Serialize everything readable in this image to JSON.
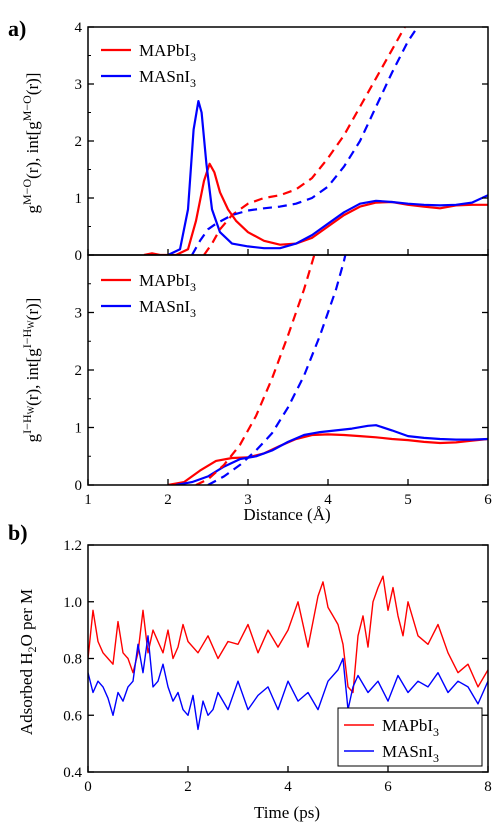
{
  "chart_data": [
    {
      "panel": "a)",
      "type": "line",
      "xlim": [
        1,
        6
      ],
      "ylim": [
        0,
        4
      ],
      "ylabel": "g^{M−O}(r), int[g^{M−O}(r)]",
      "ylabel_parts": {
        "g": "g",
        "sup": "M−O",
        "rest": "(r), int[g",
        "sup2": "M−O",
        "end": "(r)]"
      },
      "yticks": [
        0,
        1,
        2,
        3,
        4
      ],
      "legend": {
        "position": "top-left",
        "entries": [
          "MAPbI3",
          "MASnI3"
        ]
      },
      "series": [
        {
          "name": "MAPbI3",
          "color": "#ff0000",
          "style": "solid",
          "x": [
            1.7,
            1.8,
            1.9,
            2.1,
            2.25,
            2.35,
            2.45,
            2.52,
            2.58,
            2.65,
            2.75,
            2.85,
            3.0,
            3.2,
            3.4,
            3.6,
            3.8,
            4.0,
            4.2,
            4.4,
            4.6,
            4.8,
            5.0,
            5.2,
            5.4,
            5.6,
            5.8,
            6.0
          ],
          "y": [
            0.0,
            0.03,
            0.0,
            0.0,
            0.1,
            0.6,
            1.3,
            1.6,
            1.45,
            1.1,
            0.8,
            0.6,
            0.4,
            0.25,
            0.18,
            0.2,
            0.3,
            0.5,
            0.7,
            0.85,
            0.92,
            0.93,
            0.88,
            0.85,
            0.82,
            0.87,
            0.88,
            0.88
          ]
        },
        {
          "name": "MASnI3",
          "color": "#0000ff",
          "style": "solid",
          "x": [
            2.0,
            2.15,
            2.25,
            2.32,
            2.38,
            2.42,
            2.48,
            2.55,
            2.65,
            2.8,
            3.0,
            3.2,
            3.4,
            3.6,
            3.8,
            4.0,
            4.2,
            4.4,
            4.6,
            4.8,
            5.0,
            5.2,
            5.4,
            5.6,
            5.8,
            6.0
          ],
          "y": [
            0.0,
            0.1,
            0.8,
            2.2,
            2.7,
            2.5,
            1.6,
            0.8,
            0.4,
            0.2,
            0.15,
            0.12,
            0.12,
            0.2,
            0.35,
            0.55,
            0.75,
            0.9,
            0.95,
            0.93,
            0.9,
            0.88,
            0.87,
            0.88,
            0.92,
            1.05
          ]
        },
        {
          "name": "MAPbI3",
          "color": "#ff0000",
          "style": "dashed",
          "x": [
            2.45,
            2.55,
            2.65,
            2.8,
            3.0,
            3.2,
            3.4,
            3.6,
            3.8,
            4.0,
            4.2,
            4.4,
            4.6,
            4.8,
            4.96
          ],
          "y": [
            0.0,
            0.2,
            0.45,
            0.7,
            0.9,
            1.0,
            1.05,
            1.15,
            1.35,
            1.7,
            2.1,
            2.6,
            3.1,
            3.6,
            4.0
          ]
        },
        {
          "name": "MASnI3",
          "color": "#0000ff",
          "style": "dashed",
          "x": [
            2.3,
            2.4,
            2.5,
            2.6,
            2.8,
            3.0,
            3.2,
            3.4,
            3.6,
            3.8,
            4.0,
            4.2,
            4.4,
            4.6,
            4.8,
            5.0,
            5.12
          ],
          "y": [
            0.0,
            0.25,
            0.45,
            0.55,
            0.7,
            0.78,
            0.82,
            0.85,
            0.9,
            1.0,
            1.2,
            1.55,
            2.0,
            2.6,
            3.2,
            3.75,
            4.0
          ]
        }
      ]
    },
    {
      "type": "line",
      "xlim": [
        1,
        6
      ],
      "ylim": [
        0,
        4
      ],
      "xlabel": "Distance (Å)",
      "ylabel_parts": {
        "g": "g",
        "sup": "I−H",
        "supsub": "W",
        "rest": "(r), int[g",
        "sup2": "I−H",
        "sup2sub": "W",
        "end": "(r)]"
      },
      "xticks": [
        1,
        2,
        3,
        4,
        5,
        6
      ],
      "yticks": [
        0,
        1,
        2,
        3
      ],
      "legend": {
        "position": "top-left",
        "entries": [
          "MAPbI3",
          "MASnI3"
        ]
      },
      "series": [
        {
          "name": "MAPbI3",
          "color": "#ff0000",
          "style": "solid",
          "x": [
            2.0,
            2.2,
            2.4,
            2.6,
            2.8,
            3.0,
            3.2,
            3.4,
            3.6,
            3.8,
            4.0,
            4.2,
            4.4,
            4.6,
            4.8,
            5.0,
            5.2,
            5.4,
            5.6,
            5.8,
            6.0
          ],
          "y": [
            0.0,
            0.05,
            0.25,
            0.42,
            0.47,
            0.48,
            0.55,
            0.68,
            0.8,
            0.87,
            0.88,
            0.87,
            0.85,
            0.83,
            0.8,
            0.78,
            0.75,
            0.73,
            0.74,
            0.77,
            0.8
          ]
        },
        {
          "name": "MASnI3",
          "color": "#0000ff",
          "style": "solid",
          "x": [
            2.1,
            2.3,
            2.5,
            2.7,
            2.9,
            3.1,
            3.3,
            3.5,
            3.7,
            3.9,
            4.1,
            4.3,
            4.5,
            4.6,
            4.8,
            5.0,
            5.2,
            5.4,
            5.6,
            5.8,
            6.0
          ],
          "y": [
            0.0,
            0.05,
            0.15,
            0.32,
            0.45,
            0.5,
            0.6,
            0.75,
            0.87,
            0.92,
            0.95,
            0.98,
            1.03,
            1.04,
            0.95,
            0.85,
            0.82,
            0.8,
            0.79,
            0.79,
            0.8
          ]
        },
        {
          "name": "MAPbI3",
          "color": "#ff0000",
          "style": "dashed",
          "x": [
            2.35,
            2.5,
            2.7,
            2.9,
            3.1,
            3.3,
            3.5,
            3.7,
            3.85,
            3.95
          ],
          "y": [
            0.0,
            0.1,
            0.35,
            0.7,
            1.2,
            1.85,
            2.6,
            3.4,
            4.1,
            4.5
          ]
        },
        {
          "name": "MASnI3",
          "color": "#0000ff",
          "style": "dashed",
          "x": [
            2.5,
            2.7,
            2.9,
            3.1,
            3.3,
            3.5,
            3.7,
            3.9,
            4.1,
            4.2,
            4.3
          ],
          "y": [
            0.0,
            0.15,
            0.35,
            0.6,
            0.9,
            1.35,
            1.9,
            2.6,
            3.4,
            3.9,
            4.5
          ]
        }
      ]
    },
    {
      "panel": "b)",
      "type": "line",
      "xlim": [
        0,
        8
      ],
      "ylim": [
        0.4,
        1.2
      ],
      "xlabel": "Time (ps)",
      "ylabel": "Adsorbed H2O per M",
      "ylabel_parts": {
        "pre": "Adsorbed H",
        "sub": "2",
        "post": "O per M"
      },
      "xticks": [
        0,
        2,
        4,
        6,
        8
      ],
      "yticks": [
        0.4,
        0.6,
        0.8,
        1.0,
        1.2
      ],
      "legend": {
        "position": "bottom-right",
        "entries": [
          "MAPbI3",
          "MASnI3"
        ]
      },
      "series": [
        {
          "name": "MAPbI3",
          "color": "#ff0000",
          "style": "solid",
          "x": [
            0.0,
            0.1,
            0.2,
            0.3,
            0.4,
            0.5,
            0.6,
            0.7,
            0.8,
            0.9,
            1.0,
            1.1,
            1.2,
            1.3,
            1.4,
            1.5,
            1.6,
            1.7,
            1.8,
            1.9,
            2.0,
            2.2,
            2.4,
            2.6,
            2.8,
            3.0,
            3.2,
            3.4,
            3.6,
            3.8,
            4.0,
            4.2,
            4.4,
            4.6,
            4.7,
            4.8,
            4.9,
            5.0,
            5.1,
            5.2,
            5.3,
            5.4,
            5.5,
            5.6,
            5.7,
            5.8,
            5.9,
            6.0,
            6.1,
            6.2,
            6.3,
            6.4,
            6.6,
            6.8,
            7.0,
            7.2,
            7.4,
            7.6,
            7.8,
            8.0
          ],
          "y": [
            0.8,
            0.97,
            0.86,
            0.82,
            0.8,
            0.78,
            0.93,
            0.82,
            0.8,
            0.75,
            0.82,
            0.97,
            0.82,
            0.9,
            0.86,
            0.82,
            0.9,
            0.8,
            0.84,
            0.92,
            0.86,
            0.82,
            0.88,
            0.8,
            0.86,
            0.85,
            0.92,
            0.82,
            0.9,
            0.84,
            0.9,
            1.0,
            0.84,
            1.02,
            1.07,
            0.98,
            0.95,
            0.92,
            0.85,
            0.7,
            0.68,
            0.88,
            0.95,
            0.84,
            1.0,
            1.05,
            1.09,
            0.97,
            1.05,
            0.95,
            0.88,
            1.0,
            0.88,
            0.85,
            0.92,
            0.82,
            0.75,
            0.78,
            0.7,
            0.76
          ]
        },
        {
          "name": "MASnI3",
          "color": "#0000ff",
          "style": "solid",
          "x": [
            0.0,
            0.1,
            0.2,
            0.3,
            0.4,
            0.5,
            0.6,
            0.7,
            0.8,
            0.9,
            1.0,
            1.1,
            1.2,
            1.3,
            1.4,
            1.5,
            1.6,
            1.7,
            1.8,
            1.9,
            2.0,
            2.1,
            2.2,
            2.3,
            2.4,
            2.5,
            2.6,
            2.8,
            3.0,
            3.2,
            3.4,
            3.6,
            3.8,
            4.0,
            4.2,
            4.4,
            4.6,
            4.8,
            5.0,
            5.1,
            5.2,
            5.3,
            5.4,
            5.6,
            5.8,
            6.0,
            6.2,
            6.4,
            6.6,
            6.8,
            7.0,
            7.2,
            7.4,
            7.6,
            7.8,
            8.0
          ],
          "y": [
            0.75,
            0.68,
            0.72,
            0.7,
            0.66,
            0.6,
            0.68,
            0.65,
            0.7,
            0.72,
            0.85,
            0.75,
            0.88,
            0.7,
            0.72,
            0.78,
            0.7,
            0.65,
            0.68,
            0.62,
            0.6,
            0.67,
            0.55,
            0.65,
            0.6,
            0.62,
            0.68,
            0.62,
            0.72,
            0.62,
            0.67,
            0.7,
            0.62,
            0.72,
            0.65,
            0.68,
            0.62,
            0.72,
            0.76,
            0.8,
            0.62,
            0.7,
            0.74,
            0.68,
            0.72,
            0.65,
            0.74,
            0.68,
            0.72,
            0.7,
            0.75,
            0.68,
            0.72,
            0.7,
            0.64,
            0.72
          ]
        }
      ]
    }
  ]
}
